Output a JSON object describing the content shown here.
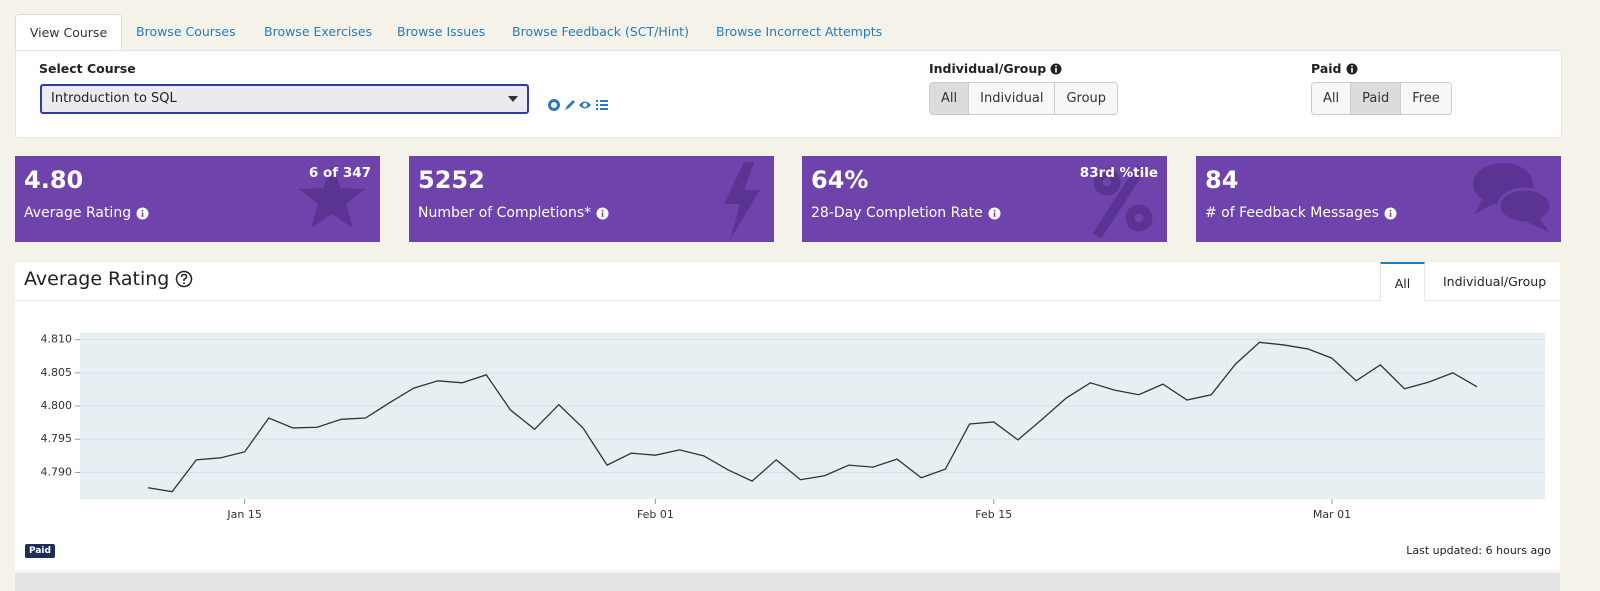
{
  "tabs": [
    "View Course",
    "Browse Courses",
    "Browse Exercises",
    "Browse Issues",
    "Browse Feedback (SCT/Hint)",
    "Browse Incorrect Attempts"
  ],
  "filters": {
    "course": {
      "label": "Select Course",
      "value": "Introduction to SQL"
    },
    "group": {
      "label": "Individual/Group",
      "options": [
        "All",
        "Individual",
        "Group"
      ]
    },
    "paid": {
      "label": "Paid",
      "options": [
        "All",
        "Paid",
        "Free"
      ]
    }
  },
  "stats": [
    {
      "value": "4.80",
      "label": "Average Rating",
      "rank": "6 of 347"
    },
    {
      "value": "5252",
      "label": "Number of Completions*"
    },
    {
      "value": "64%",
      "label": "28-Day Completion Rate",
      "rank": "83rd %tile"
    },
    {
      "value": "84",
      "label": "# of Feedback Messages"
    }
  ],
  "panel": {
    "title": "Average Rating",
    "tabs": [
      "All",
      "Individual/Group"
    ],
    "badge": "Paid",
    "updated": "Last updated: 6 hours ago"
  },
  "chart_data": {
    "type": "line",
    "x": [
      "Jan 11",
      "Jan 12",
      "Jan 13",
      "Jan 14",
      "Jan 15",
      "Jan 16",
      "Jan 17",
      "Jan 18",
      "Jan 19",
      "Jan 20",
      "Jan 21",
      "Jan 22",
      "Jan 23",
      "Jan 24",
      "Jan 25",
      "Jan 26",
      "Jan 27",
      "Jan 28",
      "Jan 29",
      "Jan 30",
      "Jan 31",
      "Feb 01",
      "Feb 02",
      "Feb 03",
      "Feb 04",
      "Feb 05",
      "Feb 06",
      "Feb 07",
      "Feb 08",
      "Feb 09",
      "Feb 10",
      "Feb 11",
      "Feb 12",
      "Feb 13",
      "Feb 14",
      "Feb 15",
      "Feb 16",
      "Feb 17",
      "Feb 18",
      "Feb 19",
      "Feb 20",
      "Feb 21",
      "Feb 22",
      "Feb 23",
      "Feb 24",
      "Feb 25",
      "Feb 26",
      "Feb 27",
      "Feb 28",
      "Mar 01",
      "Mar 02",
      "Mar 03",
      "Mar 04",
      "Mar 05",
      "Mar 06",
      "Mar 07"
    ],
    "values": [
      4.7877,
      4.7871,
      4.7919,
      4.7922,
      4.7931,
      4.7982,
      4.7967,
      4.7968,
      4.798,
      4.7982,
      4.8005,
      4.8027,
      4.8038,
      4.8035,
      4.8047,
      4.7994,
      4.7965,
      4.8002,
      4.7967,
      4.7911,
      4.7929,
      4.7926,
      4.7934,
      4.7925,
      4.7904,
      4.7887,
      4.7919,
      4.7889,
      4.7895,
      4.7911,
      4.7908,
      4.792,
      4.7892,
      4.7905,
      4.7973,
      4.7976,
      4.7949,
      4.798,
      4.8012,
      4.8035,
      4.8024,
      4.8017,
      4.8033,
      4.8009,
      4.8017,
      4.8063,
      4.8096,
      4.8092,
      4.8086,
      4.8072,
      4.8038,
      4.8062,
      4.8026,
      4.8036,
      4.805,
      4.8029
    ],
    "color": "#333333",
    "ylim": [
      4.786,
      4.811
    ],
    "yticks": [
      {
        "value": 4.79,
        "label": "4.790"
      },
      4.795,
      {
        "value": 4.8,
        "label": "4.800"
      },
      4.805,
      {
        "value": 4.81,
        "label": "4.810"
      }
    ],
    "xticks": [
      "Jan 15",
      "Feb 01",
      "Feb 15",
      "Mar 01"
    ],
    "grid": true
  }
}
